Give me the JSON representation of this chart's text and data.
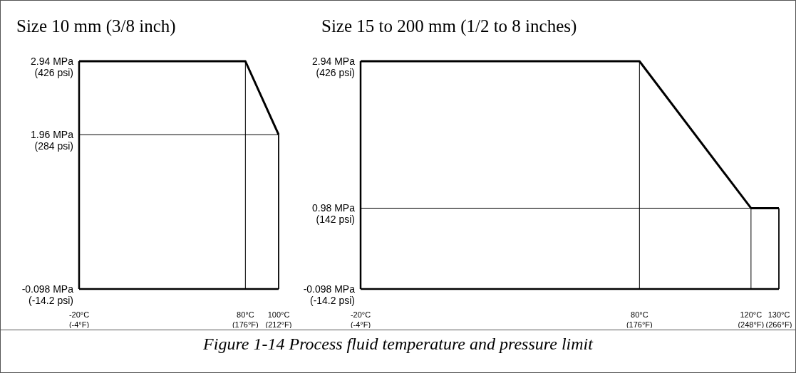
{
  "chart_data": [
    {
      "type": "line",
      "title": "Size 10 mm (3/8 inch)",
      "series": [
        {
          "color": "#000000",
          "x": [
            -20,
            80,
            100
          ],
          "values": [
            2.94,
            2.94,
            1.96
          ]
        }
      ],
      "xlim": [
        -20,
        100
      ],
      "xticks": [
        {
          "value": -20,
          "label": "-20°C"
        },
        {
          "value": 80,
          "label": "80°C"
        },
        {
          "value": 100,
          "label": "100°C"
        }
      ],
      "x2lim": [
        -4,
        212
      ],
      "x2ticks": [
        {
          "value": -4,
          "label": "(-4°F)"
        },
        {
          "value": 176,
          "label": "(176°F)"
        },
        {
          "value": 212,
          "label": "(212°F)"
        }
      ],
      "ylim": [
        -0.098,
        2.94
      ],
      "yticks": [
        {
          "value": -0.098,
          "label": "-0.098 MPa"
        },
        {
          "value": 1.96,
          "label": "1.96 MPa"
        },
        {
          "value": 2.94,
          "label": "2.94 MPa"
        }
      ],
      "y2lim": [
        -14.2,
        426
      ],
      "y2ticks": [
        {
          "value": -14.2,
          "label": "(-14.2 psi)"
        },
        {
          "value": 284,
          "label": "(284 psi)"
        },
        {
          "value": 426,
          "label": "(426 psi)"
        }
      ],
      "ref_lines": [
        {
          "axis": "x",
          "value": 80
        },
        {
          "axis": "y",
          "value": 1.96
        },
        {
          "axis": "x",
          "value": 100
        }
      ]
    },
    {
      "type": "line",
      "title": "Size 15 to 200 mm (1/2 to 8 inches)",
      "series": [
        {
          "color": "#000000",
          "x": [
            -20,
            80,
            120,
            130
          ],
          "values": [
            2.94,
            2.94,
            0.98,
            0.98
          ]
        }
      ],
      "xlim": [
        -20,
        130
      ],
      "xticks": [
        {
          "value": -20,
          "label": "-20°C"
        },
        {
          "value": 80,
          "label": "80°C"
        },
        {
          "value": 120,
          "label": "120°C"
        },
        {
          "value": 130,
          "label": "130°C"
        }
      ],
      "x2lim": [
        -4,
        266
      ],
      "x2ticks": [
        {
          "value": -4,
          "label": "(-4°F)"
        },
        {
          "value": 176,
          "label": "(176°F)"
        },
        {
          "value": 248,
          "label": "(248°F)"
        },
        {
          "value": 266,
          "label": "(266°F)"
        }
      ],
      "ylim": [
        -0.098,
        2.94
      ],
      "yticks": [
        {
          "value": -0.098,
          "label": "-0.098 MPa"
        },
        {
          "value": 0.98,
          "label": "0.98 MPa"
        },
        {
          "value": 2.94,
          "label": "2.94 MPa"
        }
      ],
      "y2lim": [
        -14.2,
        426
      ],
      "y2ticks": [
        {
          "value": -14.2,
          "label": "(-14.2 psi)"
        },
        {
          "value": 142,
          "label": "(142 psi)"
        },
        {
          "value": 426,
          "label": "(426 psi)"
        }
      ],
      "ref_lines": [
        {
          "axis": "x",
          "value": 80
        },
        {
          "axis": "x",
          "value": 120
        },
        {
          "axis": "y",
          "value": 0.98
        },
        {
          "axis": "x",
          "value": 130
        }
      ],
      "annotations": [
        "Figure 1-14  Process fluid temperature and pressure limit"
      ]
    }
  ]
}
